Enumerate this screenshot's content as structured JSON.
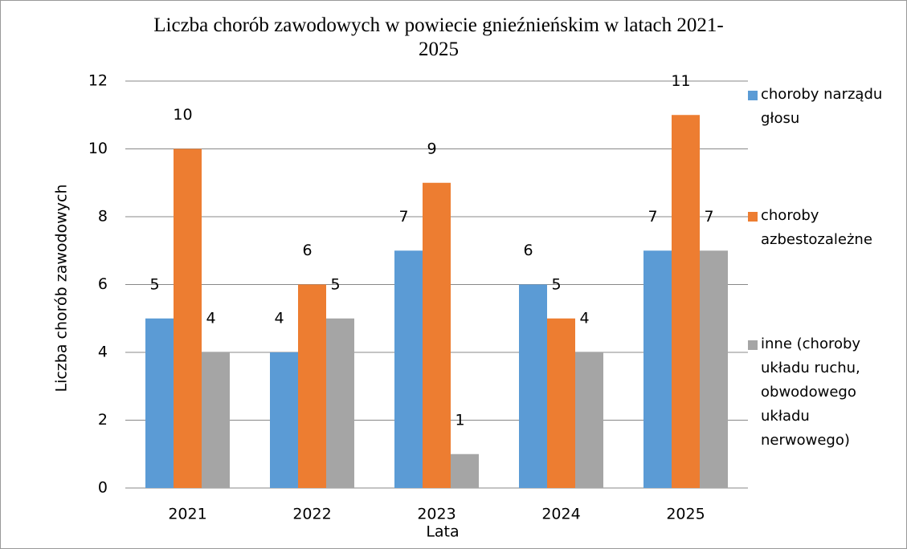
{
  "chart_data": {
    "type": "bar",
    "title": "Liczba chorób zawodowych w powiecie gnieźnieńskim w latach 2021-2025",
    "x_label": "Lata",
    "y_label": "Liczba chorób zawodowych",
    "categories": [
      "2021",
      "2022",
      "2023",
      "2024",
      "2025"
    ],
    "series": [
      {
        "name": "choroby narządu głosu",
        "color": "#5b9bd5",
        "values": [
          5,
          4,
          7,
          6,
          7
        ]
      },
      {
        "name": "choroby azbestozależne",
        "color": "#ed7d31",
        "values": [
          10,
          6,
          9,
          5,
          11
        ]
      },
      {
        "name": "inne (choroby układu ruchu, obwodowego układu nerwowego)",
        "color": "#a5a5a5",
        "values": [
          4,
          5,
          1,
          4,
          7
        ]
      }
    ],
    "ylim": [
      0,
      12
    ],
    "yticks": [
      0,
      2,
      4,
      6,
      8,
      10,
      12
    ],
    "grid": true,
    "legend": "right"
  }
}
